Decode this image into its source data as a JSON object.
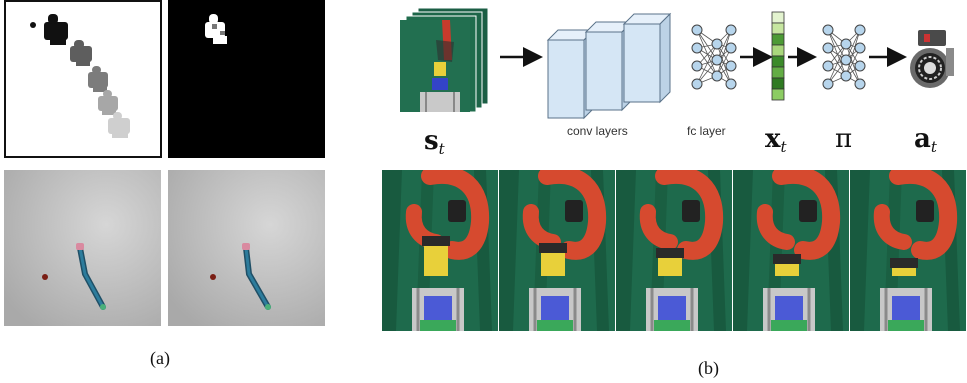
{
  "panel_a": {
    "caption": "(a)"
  },
  "panel_b": {
    "caption": "(b)",
    "conv_label": "conv layers",
    "fc_label": "fc layer",
    "state_symbol": "s",
    "state_sub": "t",
    "feature_symbol": "x",
    "feature_sub": "t",
    "policy_symbol": "π",
    "action_symbol": "a",
    "action_sub": "t"
  },
  "colors": {
    "conv_block_fill": "#d5e6f5",
    "conv_block_stroke": "#5a7289",
    "node_fill": "#b7d5ec",
    "feature_cells": [
      "#e3f3cf",
      "#c6e6a0",
      "#4c9a35",
      "#a9d77c",
      "#3b8a2a",
      "#63ad45",
      "#2f7a22",
      "#8ccc63"
    ],
    "robot_red": "#d64a2f",
    "block_yellow": "#e8d03a",
    "block_blue": "#4b5ad6",
    "cloth_green": "#1e6a4c"
  }
}
